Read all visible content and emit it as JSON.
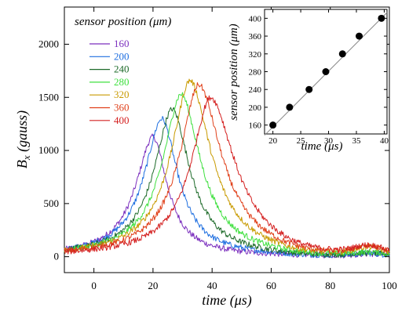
{
  "chart_data": [
    {
      "type": "line",
      "xlabel_base": "time (",
      "xlabel_unit": "μs",
      "xlabel_end": ")",
      "ylabel_main": "B",
      "ylabel_sub": "x",
      "ylabel_rest": " (gauss)",
      "xlim": [
        -10,
        100
      ],
      "ylim": [
        -150,
        2350
      ],
      "xticks": [
        0,
        20,
        40,
        60,
        80,
        100
      ],
      "yticks": [
        0,
        500,
        1000,
        1500,
        2000
      ],
      "grid": false,
      "legend_title": "sensor position (μm)",
      "legend_placement": "top-left",
      "series": [
        {
          "name": "160",
          "color": "#7b2fbe",
          "peak_x": 20,
          "peak_y": 1130
        },
        {
          "name": "200",
          "color": "#1f6fe0",
          "peak_x": 23,
          "peak_y": 1300
        },
        {
          "name": "240",
          "color": "#1e6b2a",
          "peak_x": 26.5,
          "peak_y": 1390
        },
        {
          "name": "280",
          "color": "#3fe03f",
          "peak_x": 29.5,
          "peak_y": 1530
        },
        {
          "name": "320",
          "color": "#c89a00",
          "peak_x": 32.5,
          "peak_y": 1660
        },
        {
          "name": "360",
          "color": "#e0401a",
          "peak_x": 35.5,
          "peak_y": 1620
        },
        {
          "name": "400",
          "color": "#d42020",
          "peak_x": 39.5,
          "peak_y": 1500
        }
      ]
    },
    {
      "type": "scatter",
      "xlabel_base": "time (",
      "xlabel_unit": "μs",
      "xlabel_end": ")",
      "ylabel_base": "sensor position (",
      "ylabel_unit": "μm",
      "ylabel_end": ")",
      "xlim": [
        18.5,
        40.5
      ],
      "ylim": [
        140,
        420
      ],
      "xticks": [
        20,
        25,
        30,
        35,
        40
      ],
      "yticks": [
        160,
        200,
        240,
        280,
        320,
        360,
        400
      ],
      "grid": false,
      "points": [
        {
          "x": 20,
          "y": 160
        },
        {
          "x": 23,
          "y": 200
        },
        {
          "x": 26.5,
          "y": 240
        },
        {
          "x": 29.5,
          "y": 280
        },
        {
          "x": 32.5,
          "y": 320
        },
        {
          "x": 35.5,
          "y": 360
        },
        {
          "x": 39.5,
          "y": 400
        }
      ],
      "fit_line": [
        {
          "x": 18.5,
          "y": 137
        },
        {
          "x": 40.5,
          "y": 413
        }
      ]
    }
  ]
}
